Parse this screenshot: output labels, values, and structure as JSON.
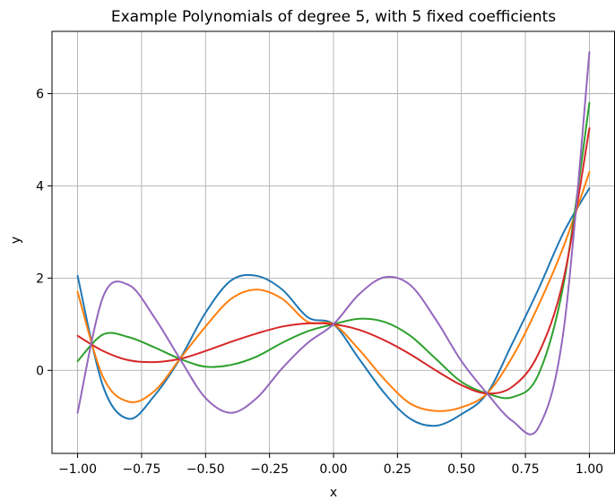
{
  "chart_data": {
    "type": "line",
    "title": "Example Polynomials of degree 5, with 5 fixed coefficients",
    "xlabel": "x",
    "ylabel": "y",
    "xlim": [
      -1.1,
      1.1
    ],
    "ylim": [
      -1.8,
      7.35
    ],
    "grid": true,
    "xticks": [
      -1.0,
      -0.75,
      -0.5,
      -0.25,
      0.0,
      0.25,
      0.5,
      0.75,
      1.0
    ],
    "xtick_labels": [
      "−1.00",
      "−0.75",
      "−0.50",
      "−0.25",
      "0.00",
      "0.25",
      "0.50",
      "0.75",
      "1.00"
    ],
    "yticks": [
      0,
      2,
      4,
      6
    ],
    "ytick_labels": [
      "0",
      "2",
      "4",
      "6"
    ],
    "x": [
      -1.0,
      -0.9,
      -0.8,
      -0.7,
      -0.6,
      -0.5,
      -0.4,
      -0.3,
      -0.2,
      -0.1,
      0.0,
      0.1,
      0.2,
      0.3,
      0.4,
      0.5,
      0.6,
      0.7,
      0.8,
      0.9,
      1.0
    ],
    "series": [
      {
        "color": "#1f77b4",
        "values": [
          2.05,
          -0.35,
          -1.05,
          -0.55,
          0.25,
          1.25,
          1.95,
          2.05,
          1.75,
          1.15,
          1.0,
          0.25,
          -0.5,
          -1.05,
          -1.2,
          -0.95,
          -0.5,
          0.6,
          1.75,
          3.0,
          3.95
        ]
      },
      {
        "color": "#ff7f0e",
        "values": [
          1.7,
          -0.15,
          -0.68,
          -0.45,
          0.25,
          0.95,
          1.55,
          1.75,
          1.55,
          1.05,
          1.0,
          0.45,
          -0.2,
          -0.72,
          -0.88,
          -0.8,
          -0.5,
          0.3,
          1.4,
          2.7,
          4.3
        ]
      },
      {
        "color": "#2ca02c",
        "values": [
          0.2,
          0.78,
          0.72,
          0.5,
          0.25,
          0.08,
          0.12,
          0.3,
          0.6,
          0.85,
          1.0,
          1.12,
          1.05,
          0.75,
          0.25,
          -0.25,
          -0.5,
          -0.58,
          -0.1,
          1.9,
          5.8
        ]
      },
      {
        "color": "#d62728",
        "values": [
          0.75,
          0.42,
          0.22,
          0.18,
          0.25,
          0.42,
          0.62,
          0.8,
          0.95,
          1.02,
          1.0,
          0.88,
          0.65,
          0.35,
          0.0,
          -0.32,
          -0.5,
          -0.35,
          0.35,
          2.0,
          5.25
        ]
      },
      {
        "color": "#9467bd",
        "values": [
          -0.92,
          1.6,
          1.85,
          1.15,
          0.25,
          -0.6,
          -0.92,
          -0.6,
          0.05,
          0.6,
          1.0,
          1.65,
          2.02,
          1.85,
          1.1,
          0.2,
          -0.5,
          -1.1,
          -1.25,
          0.9,
          6.9
        ]
      }
    ]
  }
}
